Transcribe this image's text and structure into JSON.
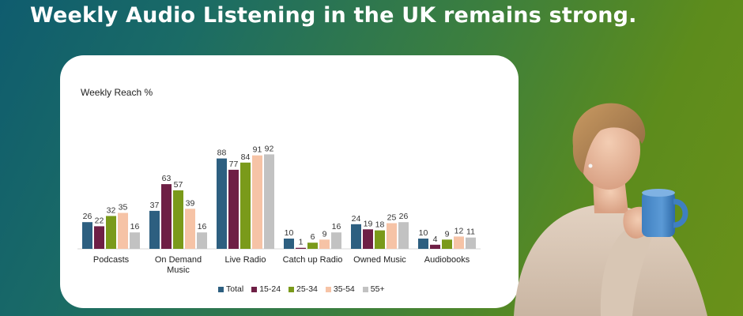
{
  "headline": "Weekly Audio Listening in the UK remains strong.",
  "chart_data": {
    "type": "bar",
    "title": "Weekly Reach %",
    "categories": [
      [
        "Podcasts"
      ],
      [
        "On Demand",
        "Music"
      ],
      [
        "Live Radio"
      ],
      [
        "Catch up Radio"
      ],
      [
        "Owned Music"
      ],
      [
        "Audiobooks"
      ]
    ],
    "series": [
      {
        "name": "Total",
        "color": "#2d5f80",
        "values": [
          26,
          37,
          88,
          10,
          24,
          10
        ]
      },
      {
        "name": "15-24",
        "color": "#6e1f45",
        "values": [
          22,
          63,
          77,
          1,
          19,
          4
        ]
      },
      {
        "name": "25-34",
        "color": "#7a9a1a",
        "values": [
          32,
          57,
          84,
          6,
          18,
          9
        ]
      },
      {
        "name": "35-54",
        "color": "#f6c3a6",
        "values": [
          35,
          39,
          91,
          9,
          25,
          12
        ]
      },
      {
        "name": "55+",
        "color": "#c2c2c2",
        "values": [
          16,
          16,
          92,
          16,
          26,
          11
        ]
      }
    ],
    "ylim": [
      0,
      100
    ],
    "grid": false,
    "legend_position": "bottom"
  }
}
